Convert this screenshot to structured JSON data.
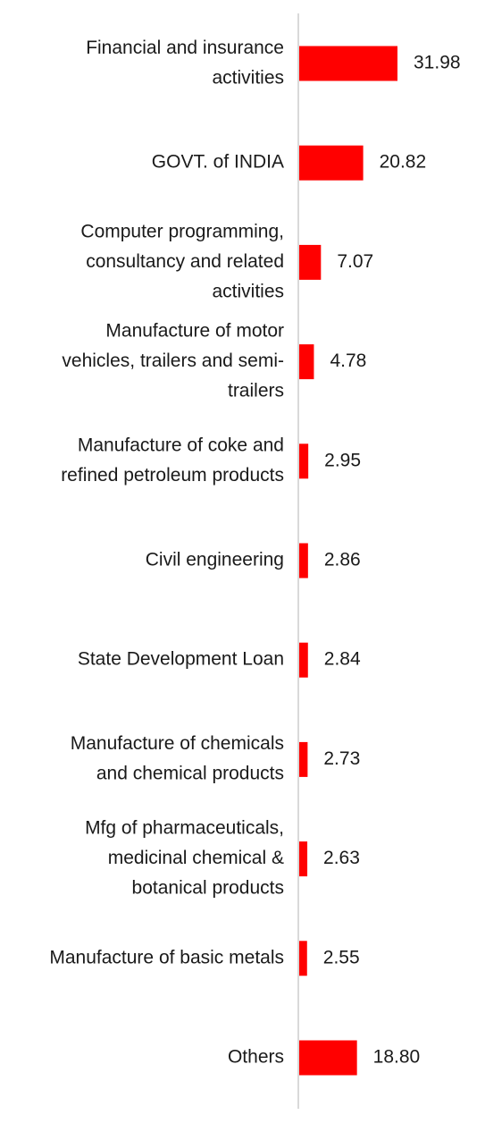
{
  "chart_data": {
    "type": "bar",
    "orientation": "horizontal",
    "categories": [
      "Financial and insurance activities",
      "GOVT. of INDIA",
      "Computer programming, consultancy and related activities",
      "Manufacture of motor vehicles, trailers and semi-trailers",
      "Manufacture of coke and refined petroleum products",
      "Civil engineering",
      "State Development Loan",
      "Manufacture of chemicals and chemical products",
      "Mfg of pharmaceuticals, medicinal chemical & botanical products",
      "Manufacture of basic metals",
      "Others"
    ],
    "category_lines": [
      [
        "Financial and insurance",
        "activities"
      ],
      [
        "GOVT. of INDIA"
      ],
      [
        "Computer programming,",
        "consultancy and related",
        "activities"
      ],
      [
        "Manufacture of motor",
        "vehicles, trailers and semi-",
        "trailers"
      ],
      [
        "Manufacture of coke and",
        "refined petroleum products"
      ],
      [
        "Civil engineering"
      ],
      [
        "State Development Loan"
      ],
      [
        "Manufacture of chemicals",
        "and chemical products"
      ],
      [
        "Mfg of pharmaceuticals,",
        "medicinal chemical &",
        "botanical products"
      ],
      [
        "Manufacture of basic metals"
      ],
      [
        "Others"
      ]
    ],
    "values": [
      31.98,
      20.82,
      7.07,
      4.78,
      2.95,
      2.86,
      2.84,
      2.73,
      2.63,
      2.55,
      18.8
    ],
    "value_labels": [
      "31.98",
      "20.82",
      "7.07",
      "4.78",
      "2.95",
      "2.86",
      "2.84",
      "2.73",
      "2.63",
      "2.55",
      "18.80"
    ],
    "bar_color": "#ff0000",
    "axis_color": "#d9d9d9",
    "grid": false,
    "legend": "none",
    "title": "",
    "xlabel": "",
    "ylabel": ""
  }
}
